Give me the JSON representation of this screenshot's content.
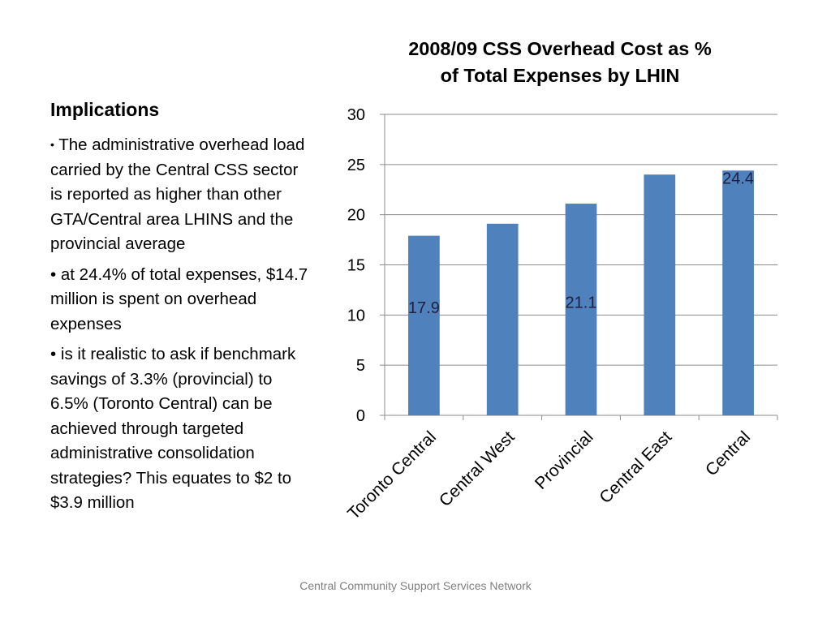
{
  "slide": {
    "heading": "Implications",
    "bullets": [
      "The administrative overhead load carried by the Central CSS sector is reported as higher than other GTA/Central area LHINS and the provincial average",
      "at 24.4% of total expenses, $14.7 million is spent on overhead expenses",
      " is it realistic to ask if benchmark savings of 3.3% (provincial) to 6.5% (Toronto Central) can be achieved through targeted administrative consolidation strategies?   This equates to $2 to $3.9 million"
    ],
    "bullet_char": "•",
    "footer": "Central Community Support Services Network"
  },
  "chart_data": {
    "type": "bar",
    "title_line1": "2008/09 CSS Overhead Cost as %",
    "title_line2": "of Total Expenses by LHIN",
    "categories": [
      "Toronto Central",
      "Central West",
      "Provincial",
      "Central East",
      "Central"
    ],
    "values": [
      17.9,
      19.1,
      21.1,
      24.0,
      24.4
    ],
    "data_labels": [
      "17.9",
      "",
      "21.1",
      "",
      "24.4"
    ],
    "ylim": [
      0,
      30
    ],
    "yticks": [
      0,
      5,
      10,
      15,
      20,
      25,
      30
    ],
    "grid": true,
    "bar_color": "#4f81bd"
  }
}
